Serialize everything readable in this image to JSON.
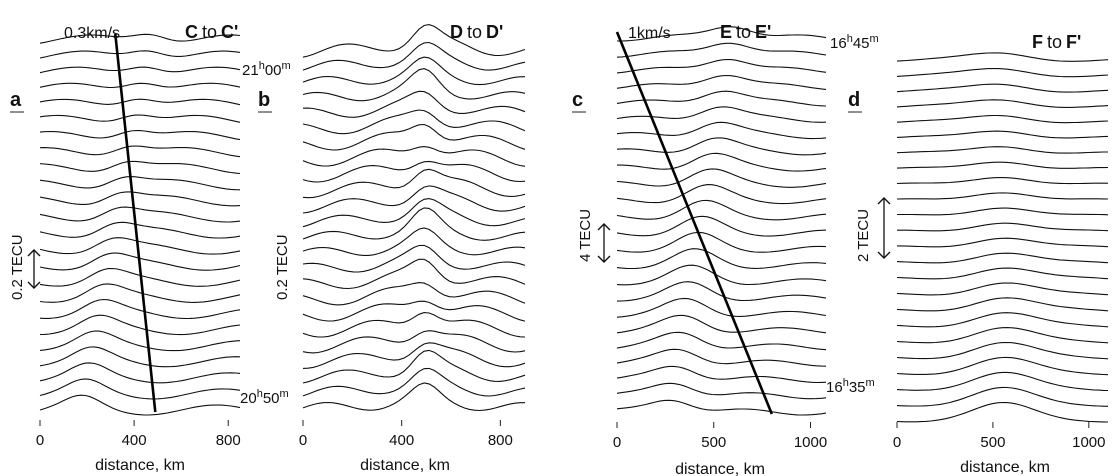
{
  "chart_data": [
    {
      "type": "line",
      "panel": "a",
      "title": {
        "from": "C",
        "to_word": "to",
        "to": "C'"
      },
      "xlabel": "distance, km",
      "x_ticks": [
        0,
        400,
        800
      ],
      "xlim": [
        0,
        850
      ],
      "scale_label": "0.2 TECU",
      "annotations": {
        "velocity_label": "0.3km/s",
        "time_top": "21h00m",
        "time_bottom": "20h50m"
      },
      "front_line": {
        "x_start": 320,
        "x_end": 490
      },
      "n_traces": 24
    },
    {
      "type": "line",
      "panel": "b",
      "title": {
        "from": "D",
        "to_word": "to",
        "to": "D'"
      },
      "xlabel": "distance, km",
      "x_ticks": [
        0,
        400,
        800
      ],
      "xlim": [
        0,
        900
      ],
      "scale_label": "0.2 TECU",
      "annotations": {},
      "n_traces": 24
    },
    {
      "type": "line",
      "panel": "c",
      "title": {
        "from": "E",
        "to_word": "to",
        "to": "E'"
      },
      "xlabel": "distance, km",
      "x_ticks": [
        0,
        500,
        1000
      ],
      "xlim": [
        0,
        1080
      ],
      "scale_label": "4 TECU",
      "annotations": {
        "velocity_label": "1km/s"
      },
      "front_line": {
        "x_start": 0,
        "x_end": 800
      },
      "n_traces": 24
    },
    {
      "type": "line",
      "panel": "d",
      "title": {
        "from": "F",
        "to_word": "to",
        "to": "F'"
      },
      "xlabel": "distance, km",
      "x_ticks": [
        0,
        500,
        1000
      ],
      "xlim": [
        0,
        1100
      ],
      "scale_label": "2 TECU",
      "annotations": {
        "time_top": "16h45m",
        "time_bottom": "16h35m"
      },
      "n_traces": 24
    }
  ]
}
